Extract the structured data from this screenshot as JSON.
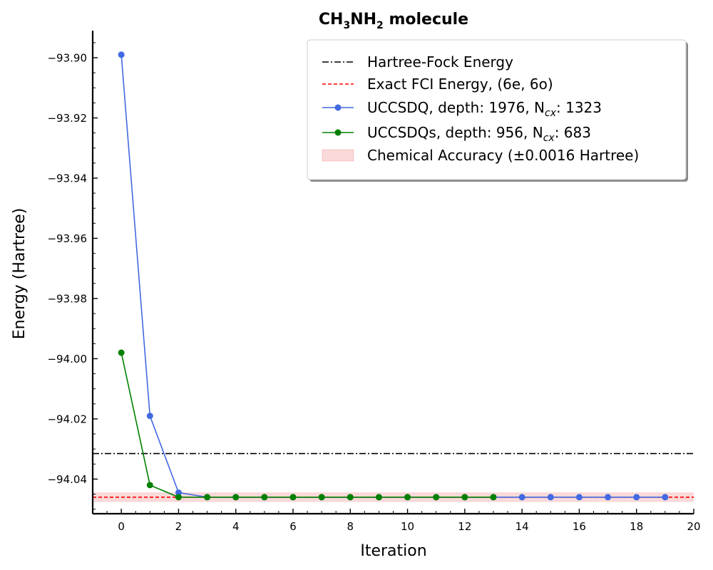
{
  "chart_data": {
    "type": "line",
    "title": {
      "main": "CH",
      "sub1": "3",
      "mid": "NH",
      "sub2": "2",
      "tail": " molecule"
    },
    "xlabel": "Iteration",
    "ylabel": "Energy (Hartree)",
    "xlim": [
      -1,
      20
    ],
    "ylim": [
      -94.0515,
      -93.891
    ],
    "xticks": [
      0,
      2,
      4,
      6,
      8,
      10,
      12,
      14,
      16,
      18,
      20
    ],
    "yticks": [
      -93.9,
      -93.92,
      -93.94,
      -93.96,
      -93.98,
      -94.0,
      -94.02,
      -94.04
    ],
    "ytick_labels": [
      "−93.90",
      "−93.92",
      "−93.94",
      "−93.96",
      "−93.98",
      "−94.00",
      "−94.02",
      "−94.04"
    ],
    "grid": false,
    "legend_position": "top-right",
    "reference_lines": [
      {
        "name": "Hartree-Fock Energy",
        "y": -94.0315,
        "color": "#000000",
        "style": "dashdot"
      },
      {
        "name": "Exact FCI Energy, (6e, 6o)",
        "y": -94.046,
        "color": "#ff0000",
        "style": "dashed"
      }
    ],
    "band": {
      "name": "Chemical Accuracy (±0.0016 Hartree)",
      "center": -94.046,
      "half_width": 0.0016,
      "color": "#f08080"
    },
    "series": [
      {
        "name": "UCCSDQ, depth: 1976, N",
        "name_sub": "cx",
        "name_tail": ": 1323",
        "color": "#4169e1",
        "x": [
          0,
          1,
          2,
          3,
          4,
          5,
          6,
          7,
          8,
          9,
          10,
          11,
          12,
          13,
          14,
          15,
          16,
          17,
          18,
          19
        ],
        "y": [
          -93.899,
          -94.019,
          -94.0445,
          -94.046,
          -94.046,
          -94.046,
          -94.046,
          -94.046,
          -94.046,
          -94.046,
          -94.046,
          -94.046,
          -94.046,
          -94.046,
          -94.046,
          -94.046,
          -94.046,
          -94.046,
          -94.046,
          -94.046
        ]
      },
      {
        "name": "UCCSDQs, depth: 956, N",
        "name_sub": "cx",
        "name_tail": ": 683",
        "color": "#008000",
        "x": [
          0,
          1,
          2,
          3,
          4,
          5,
          6,
          7,
          8,
          9,
          10,
          11,
          12,
          13
        ],
        "y": [
          -93.998,
          -94.042,
          -94.046,
          -94.046,
          -94.046,
          -94.046,
          -94.046,
          -94.046,
          -94.046,
          -94.046,
          -94.046,
          -94.046,
          -94.046,
          -94.046
        ]
      }
    ]
  }
}
